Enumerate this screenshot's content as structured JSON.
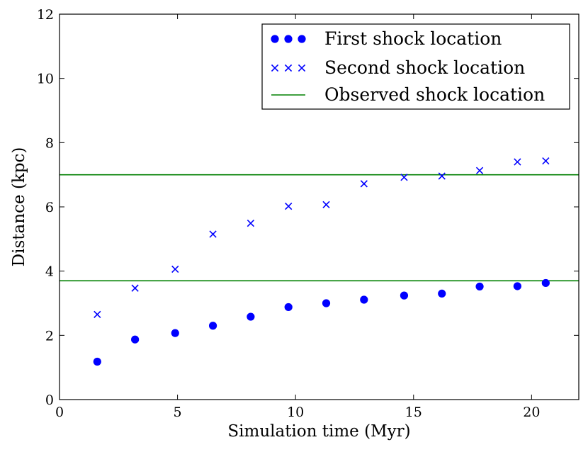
{
  "chart_data": {
    "type": "scatter",
    "title": "",
    "xlabel": "Simulation time (Myr)",
    "ylabel": "Distance (kpc)",
    "xlim": [
      0,
      22
    ],
    "ylim": [
      0,
      12
    ],
    "xticks": [
      0,
      5,
      10,
      15,
      20
    ],
    "yticks": [
      0,
      2,
      4,
      6,
      8,
      10,
      12
    ],
    "grid": false,
    "legend_position": "top-right",
    "series": [
      {
        "name": "First shock location",
        "marker": "circle",
        "color": "#0000ff",
        "x": [
          1.6,
          3.2,
          4.9,
          6.5,
          8.1,
          9.7,
          11.3,
          12.9,
          14.6,
          16.2,
          17.8,
          19.4,
          20.6
        ],
        "y": [
          1.18,
          1.87,
          2.07,
          2.3,
          2.58,
          2.88,
          3.0,
          3.11,
          3.24,
          3.3,
          3.52,
          3.53,
          3.63
        ]
      },
      {
        "name": "Second shock location",
        "marker": "x",
        "color": "#0000ff",
        "x": [
          1.6,
          3.2,
          4.9,
          6.5,
          8.1,
          9.7,
          11.3,
          12.9,
          14.6,
          16.2,
          17.8,
          19.4,
          20.6
        ],
        "y": [
          2.65,
          3.47,
          4.06,
          5.15,
          5.49,
          6.02,
          6.07,
          6.72,
          6.92,
          6.96,
          7.13,
          7.4,
          7.43
        ]
      }
    ],
    "hlines": {
      "name": "Observed shock location",
      "color": "#008000",
      "y": [
        3.7,
        7.0
      ]
    }
  }
}
